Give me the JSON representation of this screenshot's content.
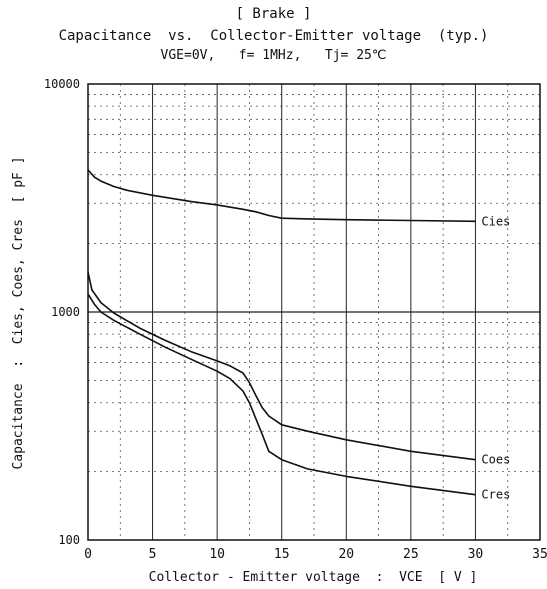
{
  "chart_data": {
    "type": "line",
    "title": "[ Brake ]",
    "subtitle": "Capacitance  vs.  Collector-Emitter voltage  (typ.)",
    "conditions": "VGE=0V,   f= 1MHz,   Tj= 25℃",
    "xlabel": "Collector - Emitter voltage  :  VCE  [ V ]",
    "ylabel": "Capacitance  :  Cies, Coes, Cres  [ pF ]",
    "xlim": [
      0,
      35
    ],
    "ylim": [
      100,
      10000
    ],
    "yscale": "log",
    "grid": true,
    "x_ticks": [
      "0",
      "5",
      "10",
      "15",
      "20",
      "25",
      "30",
      "35"
    ],
    "y_ticks": [
      "100",
      "1000",
      "10000"
    ],
    "series": [
      {
        "name": "Cies",
        "points": [
          [
            0,
            4200
          ],
          [
            0.5,
            3900
          ],
          [
            1,
            3750
          ],
          [
            2,
            3550
          ],
          [
            3,
            3420
          ],
          [
            5,
            3250
          ],
          [
            8,
            3050
          ],
          [
            10,
            2950
          ],
          [
            12,
            2820
          ],
          [
            13,
            2750
          ],
          [
            14,
            2650
          ],
          [
            15,
            2580
          ],
          [
            17,
            2560
          ],
          [
            20,
            2540
          ],
          [
            25,
            2520
          ],
          [
            30,
            2500
          ]
        ]
      },
      {
        "name": "Coes",
        "points": [
          [
            0,
            1500
          ],
          [
            0.3,
            1250
          ],
          [
            1,
            1100
          ],
          [
            2,
            990
          ],
          [
            4,
            850
          ],
          [
            6,
            750
          ],
          [
            8,
            670
          ],
          [
            10,
            610
          ],
          [
            11,
            580
          ],
          [
            12,
            540
          ],
          [
            12.5,
            490
          ],
          [
            13,
            430
          ],
          [
            13.5,
            380
          ],
          [
            14,
            350
          ],
          [
            15,
            320
          ],
          [
            17,
            300
          ],
          [
            20,
            275
          ],
          [
            25,
            245
          ],
          [
            30,
            225
          ]
        ]
      },
      {
        "name": "Cres",
        "points": [
          [
            0,
            1200
          ],
          [
            0.5,
            1080
          ],
          [
            1,
            1000
          ],
          [
            2,
            920
          ],
          [
            4,
            800
          ],
          [
            6,
            700
          ],
          [
            8,
            620
          ],
          [
            10,
            550
          ],
          [
            11,
            510
          ],
          [
            12,
            450
          ],
          [
            12.5,
            400
          ],
          [
            13,
            340
          ],
          [
            13.5,
            290
          ],
          [
            14,
            245
          ],
          [
            15,
            225
          ],
          [
            17,
            205
          ],
          [
            20,
            190
          ],
          [
            25,
            172
          ],
          [
            30,
            158
          ]
        ]
      }
    ]
  }
}
